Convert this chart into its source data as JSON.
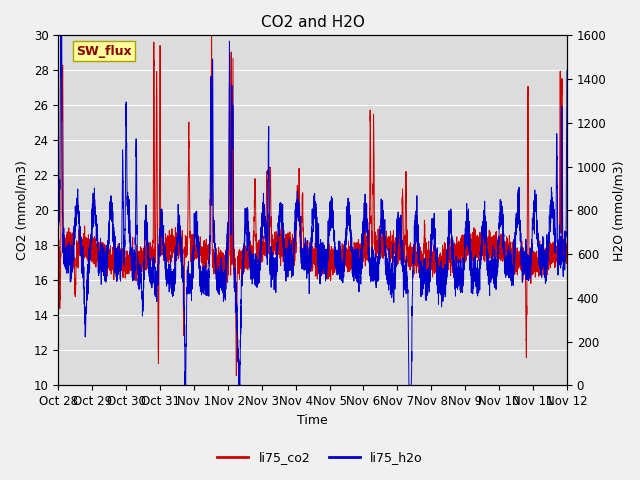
{
  "title": "CO2 and H2O",
  "xlabel": "Time",
  "ylabel_left": "CO2 (mmol/m3)",
  "ylabel_right": "H2O (mmol/m3)",
  "ylim_left": [
    10,
    30
  ],
  "ylim_right": [
    0,
    1600
  ],
  "yticks_left": [
    10,
    12,
    14,
    16,
    18,
    20,
    22,
    24,
    26,
    28,
    30
  ],
  "yticks_right": [
    0,
    200,
    400,
    600,
    800,
    1000,
    1200,
    1400,
    1600
  ],
  "x_tick_labels": [
    "Oct 28",
    "Oct 29",
    "Oct 30",
    "Oct 31",
    "Nov 1",
    "Nov 2",
    "Nov 3",
    "Nov 4",
    "Nov 5",
    "Nov 6",
    "Nov 7",
    "Nov 8",
    "Nov 9",
    "Nov 10",
    "Nov 11",
    "Nov 12"
  ],
  "legend_label_co2": "li75_co2",
  "legend_label_h2o": "li75_h2o",
  "color_co2": "#cc0000",
  "color_h2o": "#0000cc",
  "annotation_text": "SW_flux",
  "annotation_color": "#8b0000",
  "annotation_bg": "#ffff99",
  "plot_bg_color": "#dcdcdc",
  "fig_bg_color": "#f0f0f0",
  "grid_color": "#ffffff",
  "title_fontsize": 11,
  "axis_fontsize": 9,
  "tick_fontsize": 8.5
}
